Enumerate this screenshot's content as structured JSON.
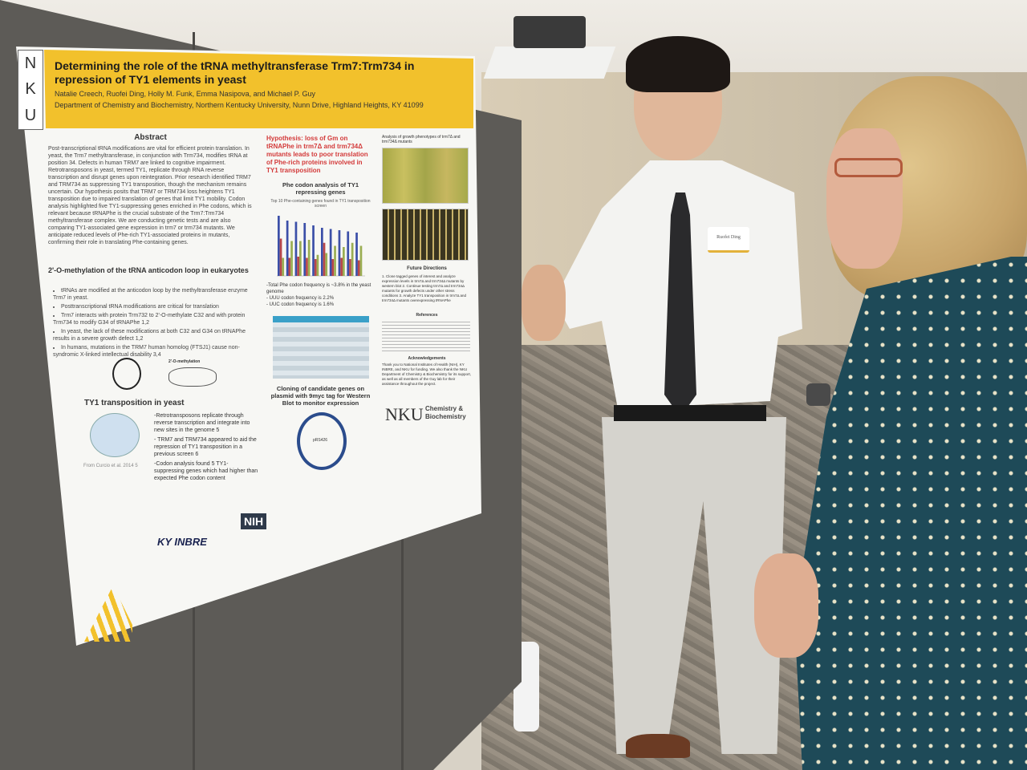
{
  "scene": {
    "description_colors": {
      "poster_banner": "#f2c12c",
      "board": "#5d5b57",
      "hypothesis_red": "#d33a3a"
    }
  },
  "poster": {
    "logo_letters": [
      "N",
      "K",
      "U"
    ],
    "title": "Determining the role of the tRNA methyltransferase Trm7:Trm734 in repression of TY1 elements in yeast",
    "authors": "Natalie Creech, Ruofei Ding, Holly M. Funk, Emma Nasipova, and Michael P. Guy",
    "department": "Department of Chemistry and Biochemistry, Northern Kentucky University, Nunn Drive, Highland Heights, KY 41099",
    "abstract_heading": "Abstract",
    "abstract": "Post-transcriptional tRNA modifications are vital for efficient protein translation. In yeast, the Trm7 methyltransferase, in conjunction with Trm734, modifies tRNA at position 34. Defects in human TRM7 are linked to cognitive impairment. Retrotransposons in yeast, termed TY1, replicate through RNA reverse transcription and disrupt genes upon reintegration. Prior research identified TRM7 and TRM734 as suppressing TY1 transposition, though the mechanism remains uncertain. Our hypothesis posits that TRM7 or TRM734 loss heightens TY1 transposition due to impaired translation of genes that limit TY1 mobility. Codon analysis highlighted five TY1-suppressing genes enriched in Phe codons, which is relevant because tRNAPhe is the crucial substrate of the Trm7:Trm734 methyltransferase complex. We are conducting genetic tests and are also comparing TY1-associated gene expression in trm7 or trm734 mutants. We anticipate reduced levels of Phe-rich TY1-associated proteins in mutants, confirming their role in translating Phe-containing genes.",
    "methylation_heading": "2'-O-methylation of the tRNA anticodon loop in eukaryotes",
    "methylation_bullets": [
      "tRNAs are modified at the anticodon loop by the methyltransferase enzyme Trm7 in yeast.",
      "Posttranscriptional tRNA modifications are critical for translation",
      "Trm7 interacts with protein Trm732 to 2'-O-methylate C32 and with protein Trm734 to modify G34 of tRNAPhe 1,2",
      "In yeast, the lack of these modifications at both C32 and G34 on tRNAPhe results in a severe growth defect 1,2",
      "In humans, mutations in the TRM7 human homolog (FTSJ1) cause non-syndromic X-linked intellectual disability 3,4"
    ],
    "methylation_figure_label": "2'-O-methylation",
    "hypothesis": "Hypothesis: loss of Gm on tRNAPhe in trm7Δ and trm734Δ mutants leads to poor translation of Phe-rich proteins involved in TY1 transposition",
    "phe_heading": "Phe codon analysis of TY1 repressing genes",
    "phe_chart_title": "Top 10 Phe-containing genes found in TY1 transposition screen",
    "phe_notes": [
      "-Total Phe codon frequency is ~3.8% in the yeast genome",
      "- UUU codon frequency is 2.2%",
      "- UUC codon frequency is 1.6%"
    ],
    "growth_heading": "Analysis of growth phenotypes of trm7Δ and trm734Δ mutants",
    "cloning_heading": "Cloning of candidate genes on plasmid with 9myc tag for Western Blot to monitor expression",
    "plasmid_label": "pRS426",
    "future_heading": "Future Directions",
    "future": "1. Clone tagged genes of interest and analyze expression levels in trm7Δ and trm734Δ mutants by western blot 2. Continue testing trm7Δ and trm734Δ mutants for growth defects under other stress conditions 3. Analyze TY1 transposition in trm7Δ and trm734Δ mutants overexpressing tRNAPhe",
    "references_heading": "References",
    "ack_heading": "Acknowledgements",
    "ack": "Thank you to National Institutes of Health (NIH), KY INBRE, and NKU for funding. We also thank the NKU Department of Chemistry & Biochemistry for its support, as well as all members of the Guy lab for their assistance throughout the project.",
    "ty1_heading": "TY1 transposition in yeast",
    "ty1_notes": [
      "-Retrotransposons replicate through reverse transcription and integrate into new sites in the genome 5",
      "- TRM7 and TRM734 appeared to aid the repression of TY1 transposition in a previous screen 6",
      "-Codon analysis found 5 TY1-suppressing genes which had higher than expected Phe codon content"
    ],
    "ty1_credit": "From Curcio et al. 2014 5",
    "nku_logo": "NKU",
    "nku_dept": "Chemistry & Biochemistry",
    "sponsor_nih": "NIH",
    "sponsor_kyinbre": "KY INBRE"
  },
  "chart_data": {
    "type": "bar",
    "title": "Top 10 Phe-containing genes found in TY1 transposition screen",
    "series": [
      {
        "color": "#3b4fa8",
        "values": [
          100,
          92,
          90,
          88,
          84,
          80,
          78,
          76,
          74,
          72
        ]
      },
      {
        "color": "#b8474a",
        "values": [
          62,
          30,
          32,
          30,
          28,
          55,
          28,
          30,
          28,
          26
        ]
      },
      {
        "color": "#9aae52",
        "values": [
          30,
          58,
          58,
          60,
          35,
          38,
          50,
          48,
          55,
          50
        ]
      }
    ]
  },
  "name_badge": {
    "name": "Ruofei Ding"
  }
}
